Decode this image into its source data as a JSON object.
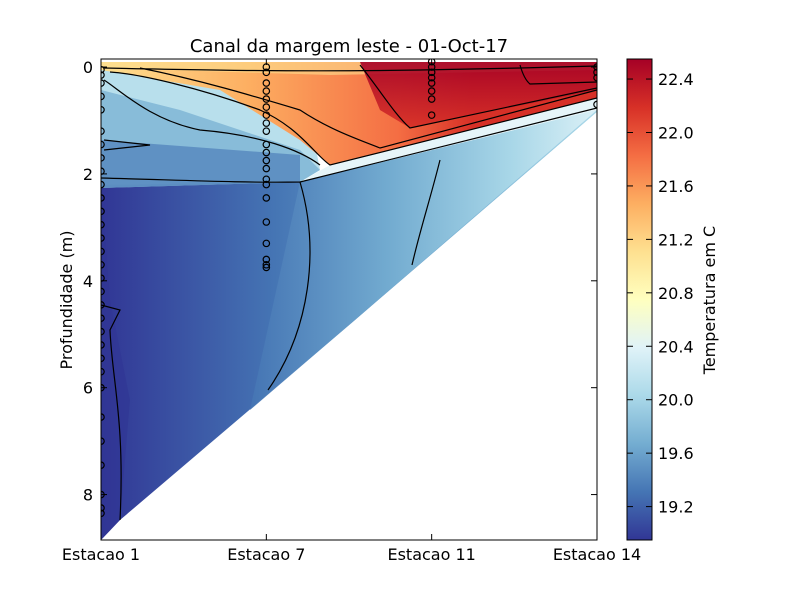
{
  "chart_data": {
    "type": "heatmap",
    "title": "Canal da margem leste - 01-Oct-17",
    "xlabel": "",
    "ylabel": "Profundidade (m)",
    "x_categories": [
      "Estacao 1",
      "Estacao 7",
      "Estacao 11",
      "Estacao 14"
    ],
    "y_ticks": [
      0,
      2,
      4,
      6,
      8
    ],
    "y_range": [
      -0.15,
      8.85
    ],
    "y_inverted": true,
    "colorbar": {
      "label": "Temperatura em C",
      "ticks": [
        "19.2",
        "19.6",
        "20.0",
        "20.4",
        "20.8",
        "21.2",
        "21.6",
        "22.0",
        "22.4"
      ],
      "range": [
        18.95,
        22.55
      ],
      "colormap": "RdYlBu_r"
    },
    "max_depth_by_station": [
      {
        "station": "Estacao 1",
        "max_depth": 8.85
      },
      {
        "station": "Estacao 7",
        "max_depth": 6.05
      },
      {
        "station": "Estacao 11",
        "max_depth": 3.55
      },
      {
        "station": "Estacao 14",
        "max_depth": 0.75
      }
    ],
    "sample_depths": [
      {
        "station": "Estacao 1",
        "depths": [
          0.05,
          0.15,
          0.3,
          0.55,
          0.8,
          1.2,
          1.45,
          1.7,
          1.95,
          2.2,
          2.45,
          2.7,
          2.95,
          3.2,
          3.45,
          3.7,
          3.95,
          4.2,
          4.45,
          4.7,
          4.95,
          5.2,
          5.45,
          5.7,
          6.0,
          6.55,
          7.0,
          7.45,
          8.0,
          8.25,
          8.35
        ]
      },
      {
        "station": "Estacao 7",
        "depths": [
          0.0,
          0.1,
          0.3,
          0.45,
          0.6,
          0.75,
          0.9,
          1.05,
          1.2,
          1.45,
          1.6,
          1.75,
          1.9,
          2.1,
          2.2,
          2.45,
          2.9,
          3.3,
          3.6,
          3.7,
          3.75
        ]
      },
      {
        "station": "Estacao 11",
        "depths": [
          -0.1,
          0.0,
          0.1,
          0.2,
          0.3,
          0.45,
          0.6,
          0.9
        ]
      },
      {
        "station": "Estacao 14",
        "depths": [
          0.0,
          0.1,
          0.2,
          0.7
        ]
      }
    ]
  }
}
